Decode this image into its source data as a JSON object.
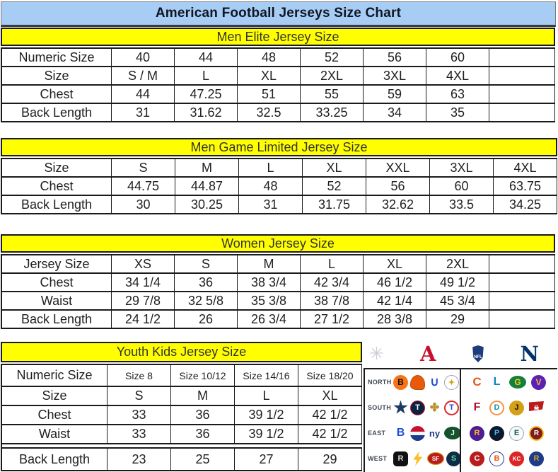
{
  "title": "American Football Jerseys Size Chart",
  "tables": [
    {
      "header": "Men Elite Jersey Size",
      "rows": [
        [
          "Numeric Size",
          "40",
          "44",
          "48",
          "52",
          "56",
          "60",
          ""
        ],
        [
          "Size",
          "S / M",
          "L",
          "XL",
          "2XL",
          "3XL",
          "4XL",
          ""
        ],
        [
          "Chest",
          "44",
          "47.25",
          "51",
          "55",
          "59",
          "63",
          ""
        ],
        [
          "Back Length",
          "31",
          "31.62",
          "32.5",
          "33.25",
          "34",
          "35",
          ""
        ]
      ]
    },
    {
      "header": "Men Game Limited Jersey Size",
      "rows": [
        [
          "Size",
          "S",
          "M",
          "L",
          "XL",
          "XXL",
          "3XL",
          "4XL"
        ],
        [
          "Chest",
          "44.75",
          "44.87",
          "48",
          "52",
          "56",
          "60",
          "63.75"
        ],
        [
          "Back Length",
          "30",
          "30.25",
          "31",
          "31.75",
          "32.62",
          "33.5",
          "34.25"
        ]
      ]
    },
    {
      "header": "Women Jersey Size",
      "rows": [
        [
          "Jersey Size",
          "XS",
          "S",
          "M",
          "L",
          "XL",
          "2XL",
          ""
        ],
        [
          "Chest",
          "34 1/4",
          "36",
          "38 3/4",
          "42 3/4",
          "46 1/2",
          "49 1/2",
          ""
        ],
        [
          "Waist",
          "29 7/8",
          "32 5/8",
          "35 3/8",
          "38 7/8",
          "42 1/4",
          "45 3/4",
          ""
        ],
        [
          "Back Length",
          "24 1/2",
          "26",
          "26 3/4",
          "27 1/2",
          "28 3/8",
          "29",
          ""
        ]
      ]
    },
    {
      "header": "Youth Kids Jersey Size",
      "rows": [
        [
          "Numeric Size",
          "Size 8",
          "Size 10/12",
          "Size 14/16",
          "Size 18/20"
        ],
        [
          "Size",
          "S",
          "M",
          "L",
          "XL"
        ],
        [
          "Chest",
          "33",
          "36",
          "39 1/2",
          "42 1/2"
        ],
        [
          "Waist",
          "33",
          "36",
          "39 1/2",
          "42 1/2"
        ],
        [
          "Back Length",
          "23",
          "25",
          "27",
          "29"
        ]
      ]
    }
  ],
  "colors": {
    "title_bg": "#a8cdf4",
    "section_header_bg": "#ffff00",
    "table_border": "#1a1a1a",
    "afc_red": "#c8102e",
    "nfc_navy": "#013369"
  },
  "nfl_panel": {
    "conference_row": {
      "starburst": {
        "glyph": "✳",
        "color": "#c9ced6"
      },
      "afc": {
        "letter": "A",
        "color": "#c8102e"
      },
      "nfl": {
        "text": "NFL"
      },
      "nfc": {
        "letter": "N",
        "color": "#013369"
      }
    },
    "divisions": [
      {
        "label": "NORTH",
        "afc": [
          {
            "name": "bengals-logo",
            "glyph": "B",
            "shape": "circle",
            "bg": "#f97316",
            "fg": "#111111"
          },
          {
            "name": "browns-helmet-logo",
            "glyph": "",
            "shape": "helmet",
            "bg": "#ea580c",
            "border": "1px solid #b45309"
          },
          {
            "name": "colts-horseshoe-logo",
            "glyph": "∪",
            "shape": "plain",
            "fg": "#1d4ed8",
            "fs": "17px"
          },
          {
            "name": "steelers-logo",
            "glyph": "✦",
            "shape": "circle",
            "bg": "#ffffff",
            "fg": "#d4a017",
            "border": "1.5px solid #9ca3af",
            "fs": "11px"
          }
        ],
        "nfc": [
          {
            "name": "bears-logo",
            "glyph": "C",
            "shape": "plain",
            "fg": "#e25822",
            "fs": "17px"
          },
          {
            "name": "lions-logo",
            "glyph": "L",
            "shape": "plain",
            "fg": "#0284c7",
            "fs": "16px"
          },
          {
            "name": "packers-logo",
            "glyph": "G",
            "shape": "oval",
            "bg": "#15803d",
            "fg": "#facc15"
          },
          {
            "name": "vikings-logo",
            "glyph": "V",
            "shape": "circle",
            "bg": "#5b21b6",
            "fg": "#fbbf24"
          }
        ]
      },
      {
        "label": "SOUTH",
        "afc": [
          {
            "name": "cowboys-star-logo",
            "glyph": "",
            "shape": "star",
            "bg": "#1e3a5f"
          },
          {
            "name": "texans-logo",
            "glyph": "T",
            "shape": "circle",
            "bg": "#0c2340",
            "fg": "#ffffff",
            "border": "1px solid #c41230",
            "fs": "11px"
          },
          {
            "name": "saints-fleur-logo",
            "glyph": "✤",
            "shape": "plain",
            "fg": "#b8912f",
            "fs": "16px"
          },
          {
            "name": "titans-logo",
            "glyph": "T",
            "shape": "circle",
            "bg": "#ffffff",
            "fg": "#1d4ed8",
            "border": "2px solid #dc2626",
            "fs": "11px"
          }
        ],
        "nfc": [
          {
            "name": "falcons-logo",
            "glyph": "F",
            "shape": "plain",
            "fg": "#a6192e",
            "fs": "16px"
          },
          {
            "name": "dolphins-logo",
            "glyph": "D",
            "shape": "circle",
            "bg": "#ffffff",
            "fg": "#0891b2",
            "border": "2px solid #fb923c",
            "fs": "11px"
          },
          {
            "name": "jaguars-logo",
            "glyph": "J",
            "shape": "circle",
            "bg": "#d4a017",
            "fg": "#111111",
            "fs": "11px"
          },
          {
            "name": "buccaneers-flag-logo",
            "glyph": "☠",
            "shape": "flag",
            "bg": "#b91c1c",
            "fg": "#ffffff",
            "fs": "9px"
          }
        ]
      },
      {
        "label": "EAST",
        "afc": [
          {
            "name": "bills-logo",
            "glyph": "B",
            "shape": "plain",
            "fg": "#1d4ed8",
            "fs": "16px"
          },
          {
            "name": "patriots-logo",
            "glyph": "",
            "shape": "circle",
            "bg": "linear-gradient(180deg,#c41230 0 38%,#f1f5f9 38% 62%,#1e3a8a 62% 100%)"
          },
          {
            "name": "giants-ny-logo",
            "glyph": "ny",
            "shape": "plain",
            "fg": "#1e3a8a",
            "fs": "13px"
          },
          {
            "name": "jets-logo",
            "glyph": "J",
            "shape": "oval",
            "bg": "#14532d",
            "fg": "#ffffff",
            "fs": "10px"
          }
        ],
        "nfc": [
          {
            "name": "ravens-logo",
            "glyph": "R",
            "shape": "circle",
            "bg": "#4c1d95",
            "fg": "#fbbf24",
            "fs": "11px"
          },
          {
            "name": "panthers-logo",
            "glyph": "P",
            "shape": "circle",
            "bg": "#0f172a",
            "fg": "#38bdf8",
            "fs": "11px"
          },
          {
            "name": "eagles-logo",
            "glyph": "E",
            "shape": "circle",
            "bg": "#f8fafc",
            "fg": "#065f46",
            "border": "1.5px solid #94a3b8",
            "fs": "11px"
          },
          {
            "name": "redskins-logo",
            "glyph": "R",
            "shape": "circle",
            "bg": "#7f1d1d",
            "fg": "#ffffff",
            "border": "2px solid #fbbf24",
            "fs": "10px"
          }
        ]
      },
      {
        "label": "WEST",
        "afc": [
          {
            "name": "raiders-logo",
            "glyph": "R",
            "shape": "square",
            "bg": "#111111",
            "fg": "#d1d5db",
            "fs": "11px"
          },
          {
            "name": "chargers-bolt-logo",
            "glyph": "",
            "shape": "bolt",
            "bg": "#fbbf24"
          },
          {
            "name": "49ers-logo",
            "glyph": "SF",
            "shape": "oval",
            "bg": "#b91c1c",
            "fg": "#ffffff",
            "border": "1.5px solid #d4a017",
            "fs": "8px"
          },
          {
            "name": "seahawks-logo",
            "glyph": "S",
            "shape": "circle",
            "bg": "#0f2a4a",
            "fg": "#4ade80",
            "fs": "11px"
          }
        ],
        "nfc": [
          {
            "name": "cardinals-logo",
            "glyph": "C",
            "shape": "circle",
            "bg": "#b91c1c",
            "fg": "#ffffff",
            "fs": "11px"
          },
          {
            "name": "broncos-logo",
            "glyph": "B",
            "shape": "circle",
            "bg": "#ffffff",
            "fg": "#ea580c",
            "border": "1.5px solid #1e3a8a",
            "fs": "11px"
          },
          {
            "name": "chiefs-logo",
            "glyph": "KC",
            "shape": "circle",
            "bg": "#dc2626",
            "fg": "#ffffff",
            "fs": "8px"
          },
          {
            "name": "rams-logo",
            "glyph": "R",
            "shape": "circle",
            "bg": "#1e3a8a",
            "fg": "#d4a017",
            "fs": "11px"
          }
        ]
      }
    ]
  }
}
